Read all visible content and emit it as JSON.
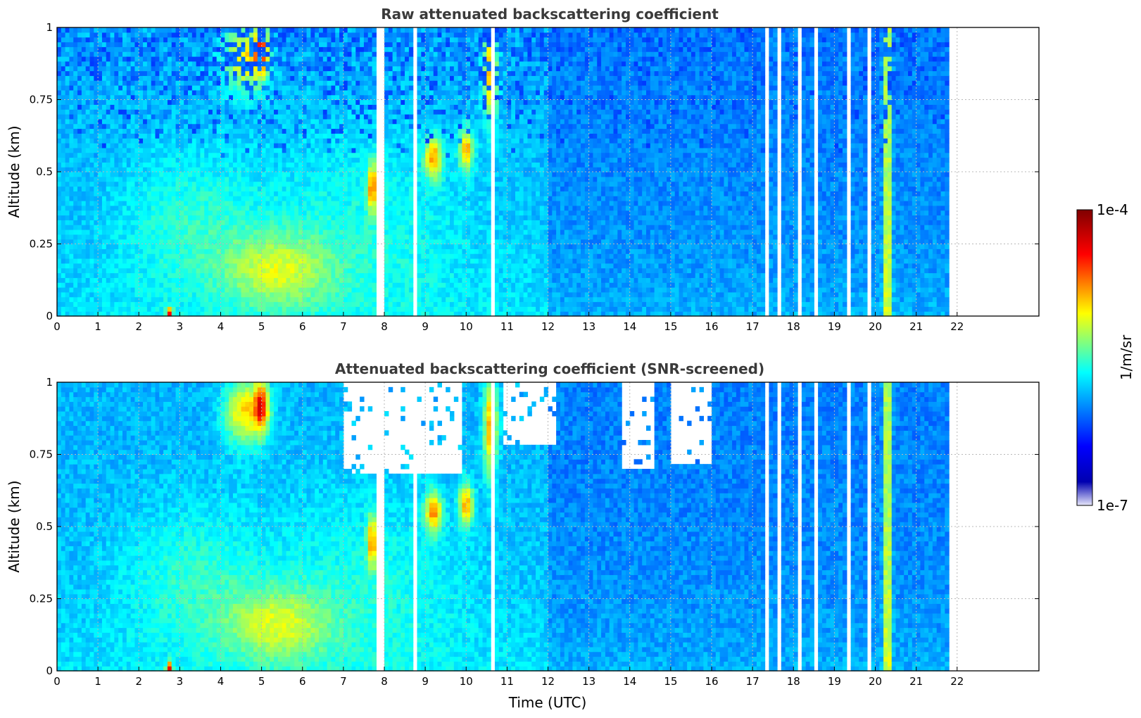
{
  "chart_data": [
    {
      "type": "heatmap",
      "title": "Raw attenuated backscattering coefficient",
      "ylabel": "Altitude (km)",
      "xlabel": "",
      "xlim": [
        0,
        24
      ],
      "ylim": [
        0,
        1
      ],
      "data_extent_hours": [
        0,
        21.8
      ],
      "xticks": [
        "0",
        "1",
        "2",
        "3",
        "4",
        "5",
        "6",
        "7",
        "8",
        "9",
        "10",
        "11",
        "12",
        "13",
        "14",
        "15",
        "16",
        "17",
        "18",
        "19",
        "20",
        "21",
        "22"
      ],
      "yticks": [
        "0",
        "0.25",
        "0.5",
        "0.75",
        "1"
      ],
      "grid": true,
      "screened": false
    },
    {
      "type": "heatmap",
      "title": "Attenuated backscattering coefficient (SNR-screened)",
      "ylabel": "Altitude (km)",
      "xlabel": "Time (UTC)",
      "xlim": [
        0,
        24
      ],
      "ylim": [
        0,
        1
      ],
      "data_extent_hours": [
        0,
        21.8
      ],
      "xticks": [
        "0",
        "1",
        "2",
        "3",
        "4",
        "5",
        "6",
        "7",
        "8",
        "9",
        "10",
        "11",
        "12",
        "13",
        "14",
        "15",
        "16",
        "17",
        "18",
        "19",
        "20",
        "21",
        "22"
      ],
      "yticks": [
        "0",
        "0.25",
        "0.5",
        "0.75",
        "1"
      ],
      "grid": true,
      "screened": true
    }
  ],
  "colorbar": {
    "label": "1/m/sr",
    "max_label": "1e-4",
    "min_label": "1e-7",
    "colormap": "jet",
    "scale": "log",
    "range": [
      1e-07,
      0.0001
    ],
    "colors": [
      "#e6e6fa",
      "#00008f",
      "#0000ff",
      "#00ffff",
      "#ffff00",
      "#ff0000",
      "#800000"
    ]
  }
}
